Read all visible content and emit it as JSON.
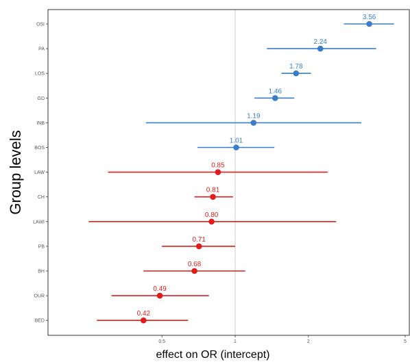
{
  "chart_data": {
    "type": "forest",
    "title": "",
    "xlabel": "effect on OR (intercept)",
    "ylabel": "Group levels",
    "x_scale": "log",
    "xlim": [
      0.17,
      5.2
    ],
    "x_ticks": [
      {
        "value": 0.5,
        "label": "0.5"
      },
      {
        "value": 1,
        "label": "1"
      },
      {
        "value": 2,
        "label": "2"
      },
      {
        "value": 5,
        "label": "5"
      }
    ],
    "reference_line": 1,
    "grid": false,
    "colors": {
      "positive": "#3a7dc9",
      "negative": "#e01b1b",
      "axis": "#333333",
      "refline": "#cccccc"
    },
    "rows": [
      {
        "label": "OSI",
        "estimate": 3.56,
        "display": "3.56",
        "lower": 2.8,
        "upper": 4.5,
        "group": "positive"
      },
      {
        "label": "PA",
        "estimate": 2.24,
        "display": "2.24",
        "lower": 1.35,
        "upper": 3.8,
        "group": "positive"
      },
      {
        "label": "LOS",
        "estimate": 1.78,
        "display": "1.78",
        "lower": 1.55,
        "upper": 2.05,
        "group": "positive"
      },
      {
        "label": "GD",
        "estimate": 1.46,
        "display": "1.46",
        "lower": 1.2,
        "upper": 1.75,
        "group": "positive"
      },
      {
        "label": "INB",
        "estimate": 1.19,
        "display": "1.19",
        "lower": 0.43,
        "upper": 3.3,
        "group": "positive"
      },
      {
        "label": "BOS",
        "estimate": 1.01,
        "display": "1.01",
        "lower": 0.7,
        "upper": 1.45,
        "group": "positive"
      },
      {
        "label": "LAW",
        "estimate": 0.85,
        "display": "0.85",
        "lower": 0.3,
        "upper": 2.4,
        "group": "negative"
      },
      {
        "label": "CH",
        "estimate": 0.81,
        "display": "0.81",
        "lower": 0.68,
        "upper": 0.98,
        "group": "negative"
      },
      {
        "label": "LAWI",
        "estimate": 0.8,
        "display": "0.80",
        "lower": 0.25,
        "upper": 2.6,
        "group": "negative"
      },
      {
        "label": "PB",
        "estimate": 0.71,
        "display": "0.71",
        "lower": 0.5,
        "upper": 1.0,
        "group": "negative"
      },
      {
        "label": "BH",
        "estimate": 0.68,
        "display": "0.68",
        "lower": 0.42,
        "upper": 1.1,
        "group": "negative"
      },
      {
        "label": "OUR",
        "estimate": 0.49,
        "display": "0.49",
        "lower": 0.31,
        "upper": 0.78,
        "group": "negative"
      },
      {
        "label": "BED",
        "estimate": 0.42,
        "display": "0.42",
        "lower": 0.27,
        "upper": 0.64,
        "group": "negative"
      }
    ]
  }
}
